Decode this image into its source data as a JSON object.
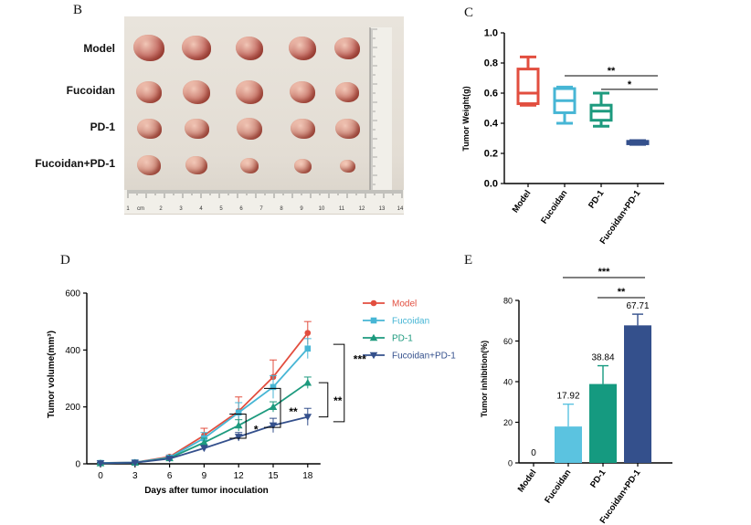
{
  "panels": {
    "b": "B",
    "c": "C",
    "d": "D",
    "e": "E"
  },
  "photo": {
    "row_labels": [
      "Model",
      "Fucoidan",
      "PD-1",
      "Fucoidan+PD-1"
    ],
    "ruler_numbers": [
      "1",
      "cm",
      "2",
      "3",
      "4",
      "5",
      "6",
      "7",
      "8",
      "9",
      "10",
      "11",
      "12",
      "13",
      "14"
    ]
  },
  "chart_data": [
    {
      "id": "C",
      "type": "box",
      "ylabel": "Tumor Weight(g)",
      "ylim": [
        0.0,
        1.0
      ],
      "yticks": [
        "0.0",
        "0.2",
        "0.4",
        "0.6",
        "0.8",
        "1.0"
      ],
      "categories": [
        "Model",
        "Fucoidan",
        "PD-1",
        "Fucoidan+PD-1"
      ],
      "colors": [
        "#e24e3f",
        "#47b6d5",
        "#1d9a7e",
        "#34508c"
      ],
      "boxes": [
        {
          "min": 0.52,
          "q1": 0.53,
          "median": 0.6,
          "q3": 0.76,
          "max": 0.84
        },
        {
          "min": 0.4,
          "q1": 0.47,
          "median": 0.55,
          "q3": 0.63,
          "max": 0.64
        },
        {
          "min": 0.38,
          "q1": 0.42,
          "median": 0.48,
          "q3": 0.52,
          "max": 0.6
        },
        {
          "min": 0.26,
          "q1": 0.264,
          "median": 0.27,
          "q3": 0.28,
          "max": 0.285
        }
      ],
      "significance": [
        {
          "from": 1,
          "to": 3,
          "label": "**"
        },
        {
          "from": 2,
          "to": 3,
          "label": "*"
        }
      ]
    },
    {
      "id": "D",
      "type": "line",
      "xlabel": "Days after tumor inoculation",
      "ylabel": "Tumor volume(mm³)",
      "x": [
        0,
        3,
        6,
        9,
        12,
        15,
        18
      ],
      "ylim": [
        0,
        600
      ],
      "yticks": [
        "0",
        "200",
        "400",
        "600"
      ],
      "legend_position": "right",
      "series": [
        {
          "name": "Model",
          "color": "#e24e3f",
          "marker": "circle",
          "values": [
            3,
            5,
            25,
            100,
            185,
            305,
            460
          ],
          "errors": [
            2,
            2,
            6,
            25,
            50,
            60,
            40
          ]
        },
        {
          "name": "Fucoidan",
          "color": "#47b6d5",
          "marker": "square",
          "values": [
            3,
            5,
            22,
            90,
            180,
            270,
            405
          ],
          "errors": [
            2,
            2,
            5,
            20,
            35,
            40,
            35
          ]
        },
        {
          "name": "PD-1",
          "color": "#1d9a7e",
          "marker": "triangle-up",
          "values": [
            2,
            4,
            20,
            75,
            135,
            200,
            285
          ],
          "errors": [
            2,
            2,
            5,
            15,
            20,
            18,
            20
          ]
        },
        {
          "name": "Fucoidan+PD-1",
          "color": "#34508c",
          "marker": "triangle-down",
          "values": [
            2,
            4,
            18,
            55,
            95,
            135,
            165
          ],
          "errors": [
            2,
            2,
            4,
            10,
            15,
            25,
            30
          ]
        }
      ],
      "significance": [
        {
          "day": 12,
          "label": "*"
        },
        {
          "day": 15,
          "label": "**"
        },
        {
          "between": "PD-1 vs Fucoidan+PD-1",
          "label": "**"
        },
        {
          "between": "Model vs Fucoidan+PD-1",
          "label": "***"
        }
      ]
    },
    {
      "id": "E",
      "type": "bar",
      "ylabel": "Tumor inhibition(%)",
      "categories": [
        "Model",
        "Fucoidan",
        "PD-1",
        "Fucoidan+PD-1"
      ],
      "values": [
        0,
        17.92,
        38.84,
        67.71
      ],
      "labels": [
        "0",
        "17.92",
        "38.84",
        "67.71"
      ],
      "errors": [
        0,
        11,
        9,
        5.5
      ],
      "colors": [
        "#e24e3f",
        "#5bc3e0",
        "#159a80",
        "#34508c"
      ],
      "ylim": [
        0,
        80
      ],
      "yticks": [
        "0",
        "20",
        "40",
        "60",
        "80"
      ],
      "significance": [
        {
          "from": 1,
          "to": 3,
          "label": "***"
        },
        {
          "from": 2,
          "to": 3,
          "label": "**"
        }
      ]
    }
  ]
}
